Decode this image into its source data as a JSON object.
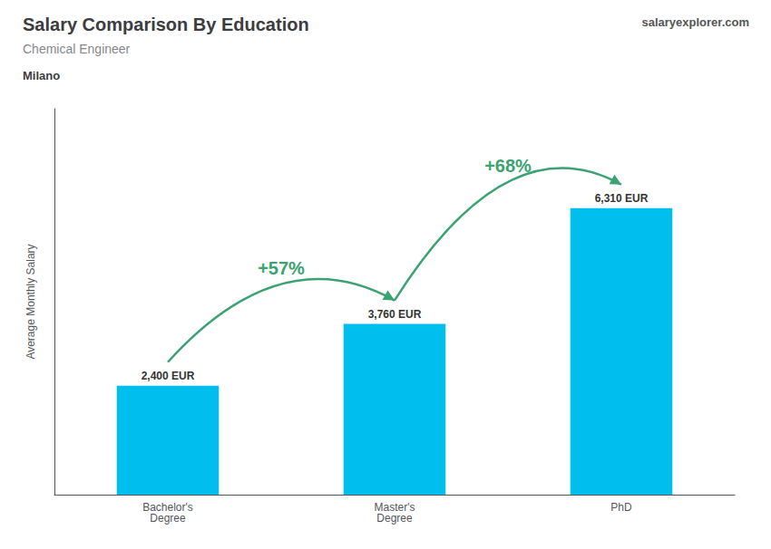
{
  "chart_data": {
    "type": "bar",
    "title": "Salary Comparison By Education",
    "subtitle": "Chemical Engineer",
    "location": "Milano",
    "watermark": "salaryexplorer.com",
    "ylabel": "Average Monthly Salary",
    "categories": [
      "Bachelor's\nDegree",
      "Master's\nDegree",
      "PhD"
    ],
    "values": [
      2400,
      3760,
      6310
    ],
    "value_labels": [
      "2,400 EUR",
      "3,760 EUR",
      "6,310 EUR"
    ],
    "data_labels": true,
    "color": "#00BFEF",
    "annotations": [
      "+57%",
      "+68%"
    ],
    "ylim": [
      0,
      8500
    ],
    "tick_labels": "x",
    "grid": false
  }
}
